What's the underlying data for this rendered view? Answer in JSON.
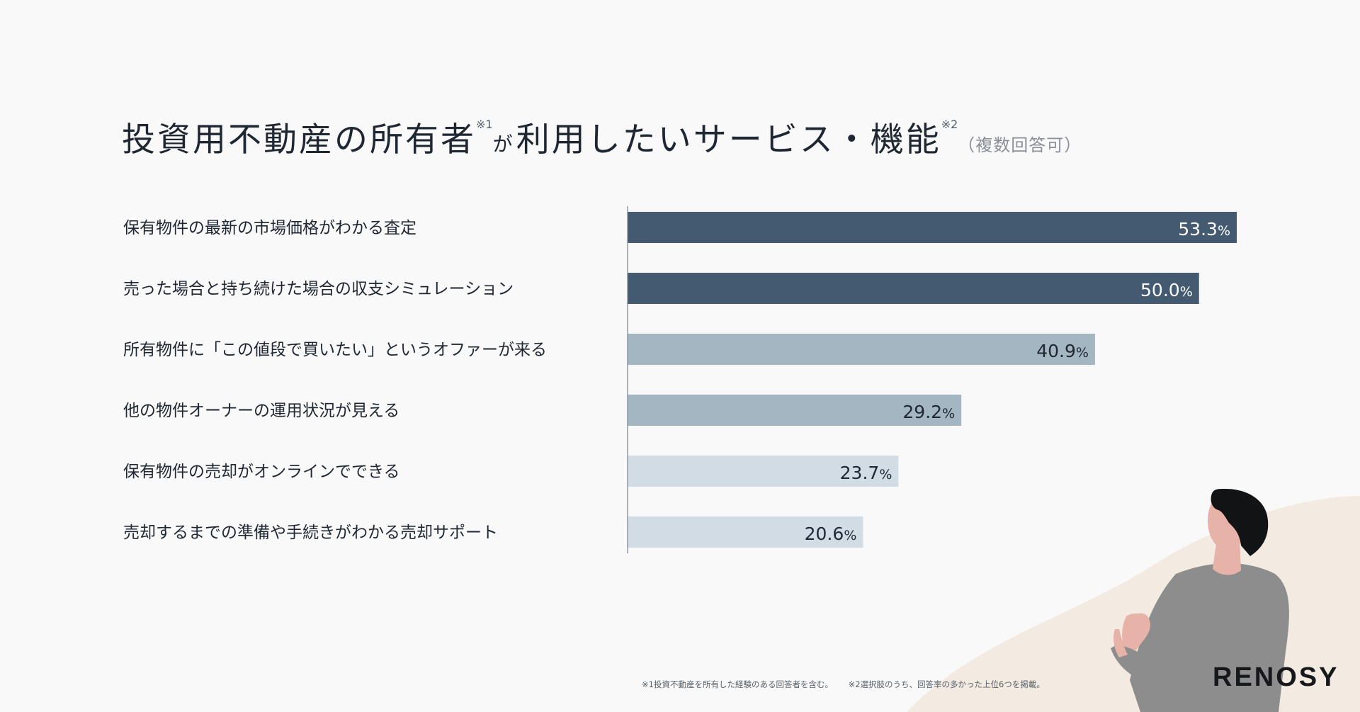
{
  "title": {
    "part1": "投資用不動産の所有者",
    "sup1": "※1",
    "part2": "が",
    "part3": "利用したいサービス・機能",
    "sup2": "※2",
    "note": "（複数回答可）"
  },
  "chart_data": {
    "type": "bar",
    "orientation": "horizontal",
    "categories": [
      "保有物件の最新の市場価格がわかる査定",
      "売った場合と持ち続けた場合の収支シミュレーション",
      "所有物件に「この値段で買いたい」というオファーが来る",
      "他の物件オーナーの運用状況が見える",
      "保有物件の売却がオンラインでできる",
      "売却するまでの準備や手続きがわかる売却サポート"
    ],
    "values": [
      53.3,
      50.0,
      40.9,
      29.2,
      23.7,
      20.6
    ],
    "value_labels": [
      "53.3",
      "50.0",
      "40.9",
      "29.2",
      "23.7",
      "20.6"
    ],
    "unit": "%",
    "bar_colors": [
      "#445a70",
      "#445a70",
      "#a3b6c2",
      "#a3b6c2",
      "#d2dce4",
      "#d2dce4"
    ],
    "label_colors": [
      "#ffffff",
      "#ffffff",
      "#1f2733",
      "#1f2733",
      "#1f2733",
      "#1f2733"
    ],
    "xlim": [
      0,
      53.3
    ]
  },
  "footnotes": {
    "note1": "※1投資不動産を所有した経験のある回答者を含む。",
    "note2": "※2選択肢のうち、回答率の多かった上位6つを掲載。"
  },
  "brand": "RENOSY",
  "colors": {
    "background": "#f9f9f9",
    "text": "#1f2733",
    "blob": "#f3ebe1"
  }
}
